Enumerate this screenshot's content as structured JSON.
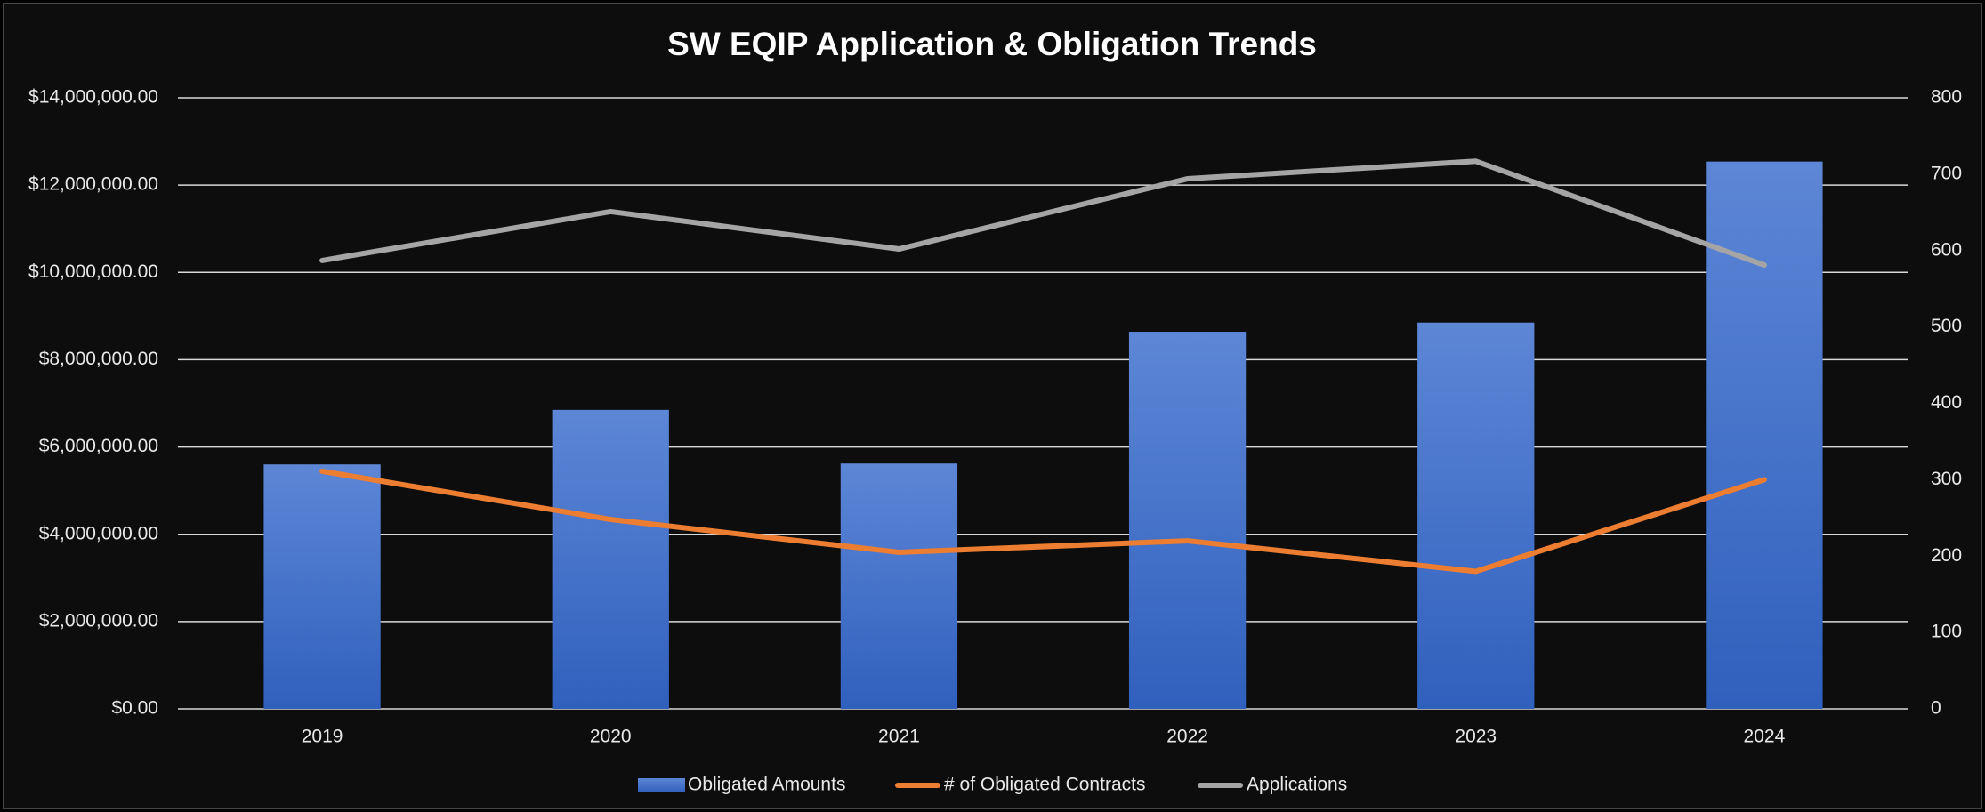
{
  "chart_data": {
    "type": "bar_line",
    "title": "SW EQIP Application & Obligation Trends",
    "categories": [
      "2019",
      "2020",
      "2021",
      "2022",
      "2023",
      "2024"
    ],
    "series": [
      {
        "name": "Obligated Amounts",
        "type": "bar",
        "color": "#4472c4",
        "values": [
          5600000,
          6850000,
          5620000,
          8640000,
          8850000,
          12540000
        ]
      },
      {
        "name": "# of Obligated Contracts",
        "type": "line",
        "axis": "y2",
        "color": "#ed7d31",
        "values": [
          311,
          248,
          205,
          220,
          180,
          300
        ]
      },
      {
        "name": "Applications",
        "type": "line",
        "axis": "y2",
        "color": "#a5a5a5",
        "values": [
          587,
          651,
          602,
          694,
          717,
          581
        ]
      }
    ],
    "ylim": [
      0,
      14000000
    ],
    "yticks": [
      {
        "value": 0,
        "label": "$0.00"
      },
      {
        "value": 2000000,
        "label": "$2,000,000.00"
      },
      {
        "value": 4000000,
        "label": "$4,000,000.00"
      },
      {
        "value": 6000000,
        "label": "$6,000,000.00"
      },
      {
        "value": 8000000,
        "label": "$8,000,000.00"
      },
      {
        "value": 10000000,
        "label": "$10,000,000.00"
      },
      {
        "value": 12000000,
        "label": "$12,000,000.00"
      },
      {
        "value": 14000000,
        "label": "$14,000,000.00"
      }
    ],
    "y2lim": [
      0,
      800
    ],
    "y2ticks": [
      0,
      100,
      200,
      300,
      400,
      500,
      600,
      700,
      800
    ],
    "grid": true,
    "legend": "bottom"
  }
}
